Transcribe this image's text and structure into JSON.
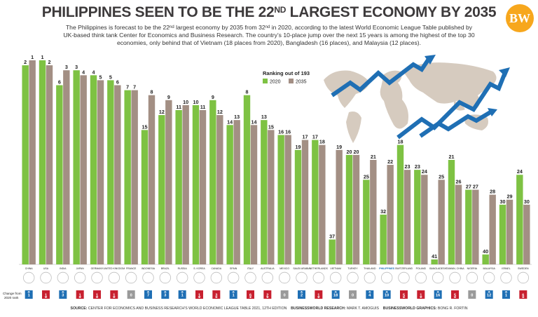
{
  "header": {
    "title_main": "PHILIPPINES SEEN TO BE THE 22",
    "title_sup": "ND",
    "title_rest": " LARGEST ECONOMY BY 2035",
    "logo_text": "BW",
    "subtitle_parts": [
      "The Philippines is forecast to be the 22",
      "nd",
      " largest economy by 2035 from 32",
      "nd",
      " in 2020, according to the latest World Economic League Table published by UK-based think tank Center for Economics and Business Research. The country’s 10-place jump over the next 15 years is among the highest of the top 30 economies, only behind that of Vietnam (18 places from 2020), Bangladesh (16 places), and Malaysia (12 places)."
    ]
  },
  "legend": {
    "title": "Ranking out of 193",
    "items": [
      {
        "label": "2020",
        "color": "#7ec243"
      },
      {
        "label": "2035",
        "color": "#a38f84"
      }
    ]
  },
  "change_label_line1": "Change from",
  "change_label_line2": "2020 rank",
  "colors": {
    "green": "#7ec243",
    "brown": "#a38f84",
    "up_badge": "#1f6fb4",
    "down_badge": "#c8202f",
    "zero_badge": "#9a9a9a",
    "arrows": "#1f6fb4",
    "map": "#d6cbbf",
    "highlight": "#1f6fb4"
  },
  "chart_data": {
    "type": "bar",
    "title": "PHILIPPINES SEEN TO BE THE 22ND LARGEST ECONOMY BY 2035",
    "ylabel": "Ranking out of 193",
    "ylim": [
      0,
      42
    ],
    "y_inverted": true,
    "categories": [
      "CHINA",
      "USA",
      "INDIA",
      "JAPAN",
      "GERMANY",
      "UNITED KINGDOM",
      "FRANCE",
      "INDONESIA",
      "BRAZIL",
      "RUSSIA",
      "S. KOREA",
      "CANADA",
      "SPAIN",
      "ITALY",
      "AUSTRALIA",
      "MEXICO",
      "SAUDI ARABIA",
      "NETHERLANDS",
      "VIETNAM",
      "TURKEY",
      "THAILAND",
      "PHILIPPINES",
      "SWITZERLAND",
      "POLAND",
      "BANGLADESH",
      "TAIWAN, CHINA",
      "NIGERIA",
      "MALAYSIA",
      "ISRAEL",
      "SWEDEN"
    ],
    "series": [
      {
        "name": "2020",
        "values": [
          2,
          1,
          6,
          3,
          4,
          5,
          7,
          15,
          12,
          11,
          10,
          9,
          14,
          8,
          13,
          16,
          19,
          17,
          37,
          20,
          25,
          32,
          18,
          23,
          41,
          21,
          27,
          40,
          30,
          24
        ]
      },
      {
        "name": "2035",
        "values": [
          1,
          2,
          3,
          4,
          5,
          6,
          7,
          8,
          9,
          10,
          11,
          12,
          13,
          14,
          15,
          16,
          17,
          18,
          19,
          20,
          21,
          22,
          23,
          24,
          25,
          26,
          27,
          28,
          29,
          30
        ]
      }
    ],
    "change": [
      {
        "dir": "up",
        "value": "1"
      },
      {
        "dir": "down",
        "value": "1"
      },
      {
        "dir": "up",
        "value": "3"
      },
      {
        "dir": "down",
        "value": "1"
      },
      {
        "dir": "down",
        "value": "1"
      },
      {
        "dir": "down",
        "value": "1"
      },
      {
        "dir": "zero",
        "value": "0"
      },
      {
        "dir": "up",
        "value": "7"
      },
      {
        "dir": "up",
        "value": "3"
      },
      {
        "dir": "up",
        "value": "1"
      },
      {
        "dir": "down",
        "value": "1"
      },
      {
        "dir": "down",
        "value": "3"
      },
      {
        "dir": "up",
        "value": "1"
      },
      {
        "dir": "down",
        "value": "6"
      },
      {
        "dir": "down",
        "value": "2"
      },
      {
        "dir": "zero",
        "value": "0"
      },
      {
        "dir": "up",
        "value": "2"
      },
      {
        "dir": "down",
        "value": "1"
      },
      {
        "dir": "up",
        "value": "18"
      },
      {
        "dir": "zero",
        "value": "0"
      },
      {
        "dir": "up",
        "value": "4"
      },
      {
        "dir": "up",
        "value": "10"
      },
      {
        "dir": "down",
        "value": "5"
      },
      {
        "dir": "down",
        "value": "1"
      },
      {
        "dir": "up",
        "value": "16"
      },
      {
        "dir": "down",
        "value": "5"
      },
      {
        "dir": "zero",
        "value": "0"
      },
      {
        "dir": "up",
        "value": "12"
      },
      {
        "dir": "up",
        "value": "1"
      },
      {
        "dir": "down",
        "value": "6"
      }
    ],
    "highlight_category": "PHILIPPINES",
    "flags": [
      "china-flag",
      "usa-flag",
      "india-flag",
      "japan-flag",
      "germany-flag",
      "uk-flag",
      "france-flag",
      "indonesia-flag",
      "brazil-flag",
      "russia-flag",
      "south-korea-flag",
      "canada-flag",
      "spain-flag",
      "italy-flag",
      "australia-flag",
      "mexico-flag",
      "saudi-arabia-flag",
      "netherlands-flag",
      "vietnam-flag",
      "turkey-flag",
      "thailand-flag",
      "philippines-flag",
      "switzerland-flag",
      "poland-flag",
      "bangladesh-flag",
      "taiwan-flag",
      "nigeria-flag",
      "malaysia-flag",
      "israel-flag",
      "sweden-flag"
    ]
  },
  "footer": {
    "source_label": "SOURCE:",
    "source_text": " CENTER FOR ECONOMICS AND BUSINESS RESEARCH’S WORLD ECONOMIC LEAGUE TABLE 2021, 12TH EDITION",
    "research_label": "BUSINESSWORLD RESEARCH:",
    "research_name": " MARK T. AMOGUIS",
    "graphics_label": "BUSINESSWORLD GRAPHICS:",
    "graphics_name": " BONG R. FORTIN"
  }
}
